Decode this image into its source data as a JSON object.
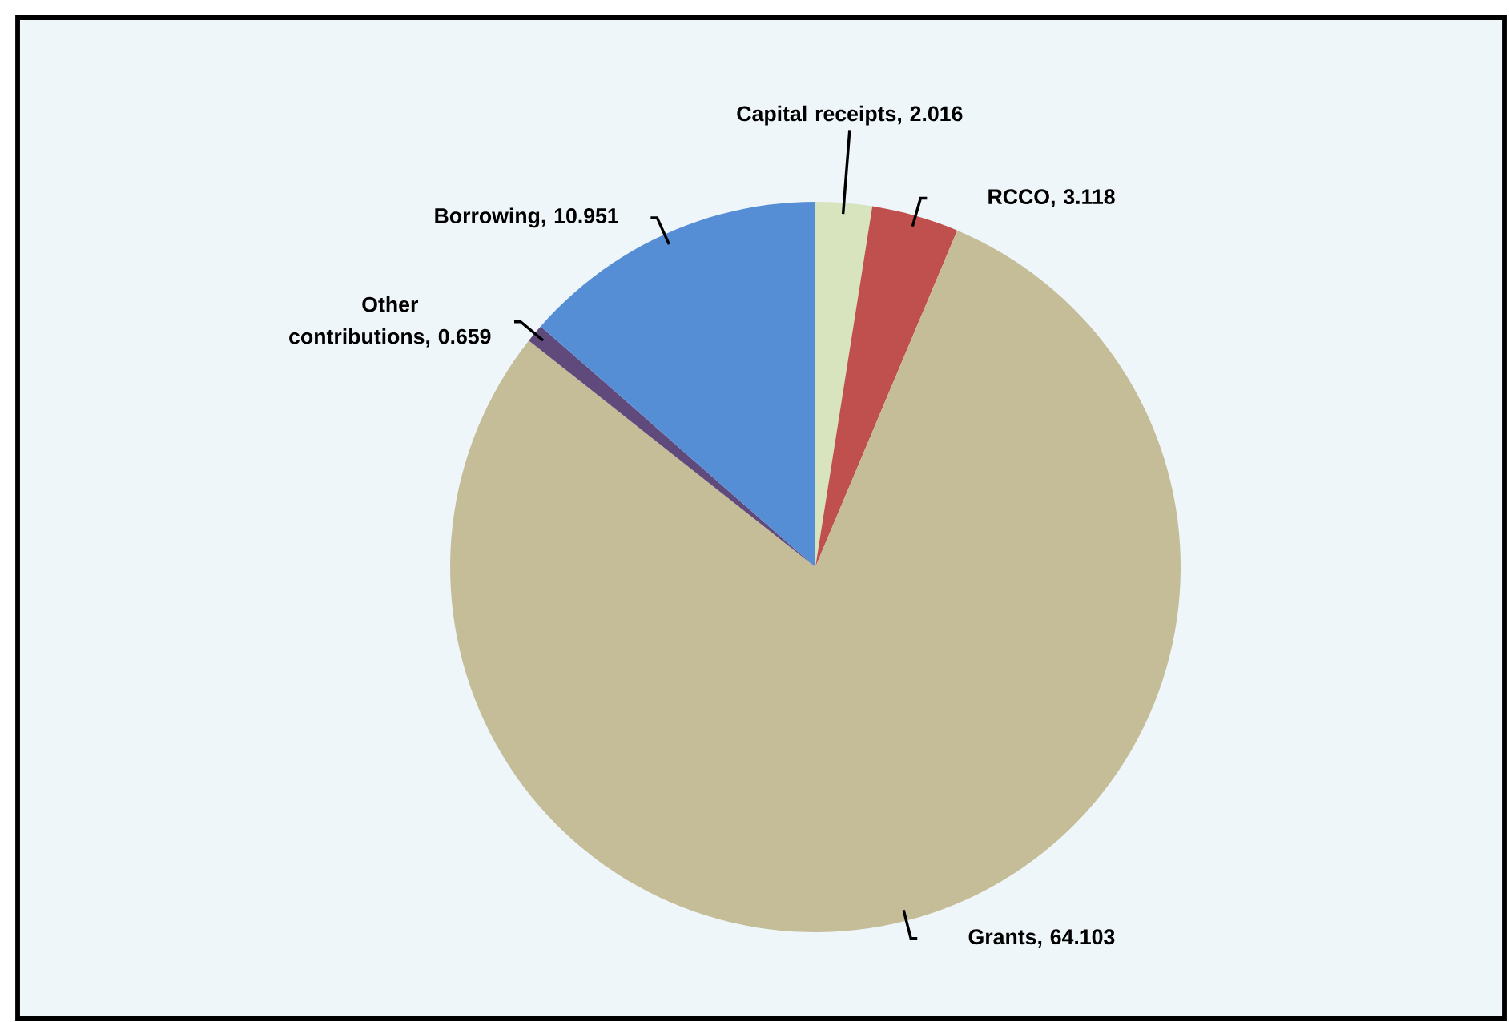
{
  "chart_data": {
    "type": "pie",
    "categories": [
      "Capital receipts",
      "RCCO",
      "Grants",
      "Other contributions",
      "Borrowing"
    ],
    "values": [
      2.016,
      3.118,
      64.103,
      0.659,
      10.951
    ],
    "value_labels": [
      ", 2.016",
      ", 3.118",
      ", 64.103",
      ", 0.659",
      ", 10.951"
    ],
    "colors": [
      "#d7e4bd",
      "#c0504d",
      "#c4bd97",
      "#604a7b",
      "#558ed5"
    ]
  }
}
